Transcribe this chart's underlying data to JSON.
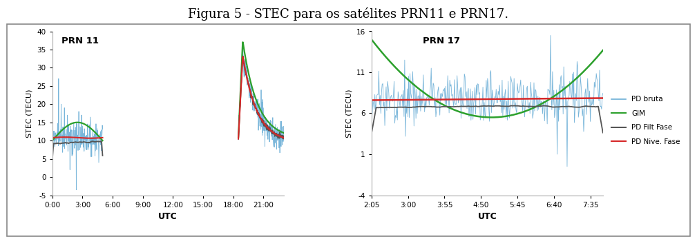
{
  "title": "Figura 5 - STEC para os satélites PRN11 e PRN17.",
  "title_fontsize": 13,
  "background_color": "#ffffff",
  "panel_bg": "#ffffff",
  "prn11": {
    "label": "PRN 11",
    "ylabel": "STEC (TECU)",
    "xlabel": "UTC",
    "ylim": [
      -5,
      40
    ],
    "yticks": [
      -5,
      0,
      5,
      10,
      15,
      20,
      25,
      30,
      35,
      40
    ],
    "xtick_labels": [
      "0:00",
      "3:00",
      "6:00",
      "9:00",
      "12:00",
      "15:00",
      "18:00",
      "21:00"
    ],
    "xtick_positions": [
      0,
      3,
      6,
      9,
      12,
      15,
      18,
      21
    ],
    "xlim": [
      0,
      23
    ]
  },
  "prn17": {
    "label": "PRN 17",
    "ylabel": "STEC (TECU)",
    "xlabel": "UTC",
    "ylim": [
      -4,
      16
    ],
    "yticks": [
      -4,
      1,
      6,
      11,
      16
    ],
    "xtick_labels": [
      "2:05",
      "3:00",
      "3:55",
      "4:50",
      "5:45",
      "6:40",
      "7:35"
    ],
    "xtick_positions": [
      2.083,
      3.0,
      3.917,
      4.833,
      5.75,
      6.667,
      7.583
    ],
    "xlim": [
      2.083,
      7.9
    ]
  },
  "colors": {
    "pd_bruta": "#6baed6",
    "gim": "#2ca02c",
    "pd_filt": "#555555",
    "pd_nive": "#d62728"
  },
  "legend_labels": [
    "PD bruta",
    "GIM",
    "PD Filt Fase",
    "PD Nive. Fase"
  ],
  "legend_colors": [
    "#6baed6",
    "#2ca02c",
    "#555555",
    "#d62728"
  ]
}
